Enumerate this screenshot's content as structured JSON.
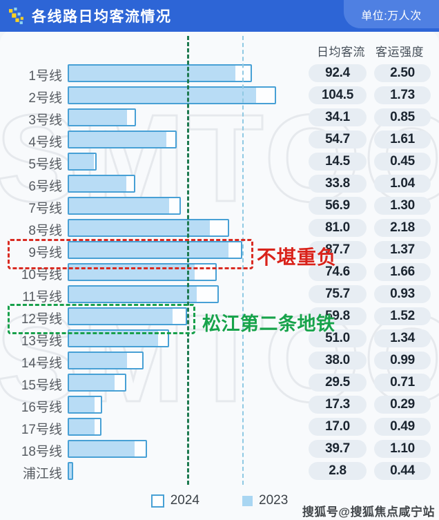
{
  "header": {
    "title": "各线路日均客流情况",
    "unit_label": "单位:万人次",
    "bg_color": "#2d65d6",
    "unit_tab_color": "#4f80e2"
  },
  "columns": {
    "daily_flow": "日均客流",
    "intensity": "客运强度"
  },
  "chart_data": {
    "type": "bar",
    "orientation": "horizontal",
    "unit": "万人次",
    "xlim": [
      0,
      110
    ],
    "grid": false,
    "legend_position": "bottom",
    "categories": [
      "1号线",
      "2号线",
      "3号线",
      "4号线",
      "5号线",
      "6号线",
      "7号线",
      "8号线",
      "9号线",
      "10号线",
      "11号线",
      "12号线",
      "13号线",
      "14号线",
      "15号线",
      "16号线",
      "17号线",
      "18号线",
      "浦江线"
    ],
    "series": [
      {
        "name": "2024",
        "style": "outline",
        "values": [
          92.4,
          104.5,
          34.1,
          54.7,
          14.5,
          33.8,
          56.9,
          81.0,
          87.7,
          74.6,
          75.7,
          59.8,
          51.0,
          38.0,
          29.5,
          17.3,
          17.0,
          39.7,
          2.8
        ]
      },
      {
        "name": "2023",
        "style": "filled",
        "estimated_from_pixels": true,
        "values": [
          84.5,
          95.0,
          30.0,
          50.0,
          13.8,
          30.0,
          51.5,
          72.0,
          81.5,
          64.0,
          65.0,
          53.0,
          46.0,
          30.0,
          24.2,
          14.0,
          14.0,
          34.0,
          2.5
        ]
      }
    ],
    "value_labels": [
      "92.4",
      "104.5",
      "34.1",
      "54.7",
      "14.5",
      "33.8",
      "56.9",
      "81.0",
      "87.7",
      "74.6",
      "75.7",
      "59.8",
      "51.0",
      "38.0",
      "29.5",
      "17.3",
      "17.0",
      "39.7",
      "2.8"
    ],
    "intensity_values": [
      2.5,
      1.73,
      0.85,
      1.61,
      0.45,
      1.04,
      1.3,
      2.18,
      1.37,
      1.66,
      0.93,
      1.52,
      1.34,
      0.99,
      0.71,
      0.29,
      0.49,
      1.1,
      0.44
    ],
    "intensity_labels": [
      "2.50",
      "1.73",
      "0.85",
      "1.61",
      "0.45",
      "1.04",
      "1.30",
      "2.18",
      "1.37",
      "1.66",
      "0.93",
      "1.52",
      "1.34",
      "0.99",
      "0.71",
      "0.29",
      "0.49",
      "1.10",
      "0.44"
    ],
    "guidelines": [
      {
        "at_value": 59.8,
        "color": "#1e7a50",
        "stroke": 3,
        "style": "dashed"
      },
      {
        "at_value": 87.7,
        "color": "#8fc9e3",
        "stroke": 2,
        "style": "dashed"
      }
    ]
  },
  "annotations": {
    "red_box": {
      "target_row": "9号线",
      "text": "不堪重负",
      "color": "#d9231b"
    },
    "green_box": {
      "target_row": "12号线",
      "text": "松江第二条地铁",
      "color": "#17a34b"
    }
  },
  "legend": {
    "items": [
      {
        "label": "2024",
        "style": "outline"
      },
      {
        "label": "2023",
        "style": "filled"
      }
    ]
  },
  "watermarks": {
    "background_text": "SMTOO",
    "bottom_right": "搜狐号@搜狐焦点咸宁站"
  },
  "palette": {
    "bar_border": "#47a0d5",
    "bar_fill": "#b8dcf5",
    "pill_bg": "#e7edf3",
    "header_bg": "#2d65d6",
    "unit_tab_bg": "#4f80e2",
    "guideline_green": "#1e7a50",
    "guideline_blue": "#8fc9e3",
    "annotation_red": "#d9231b",
    "annotation_green": "#17a34b"
  }
}
